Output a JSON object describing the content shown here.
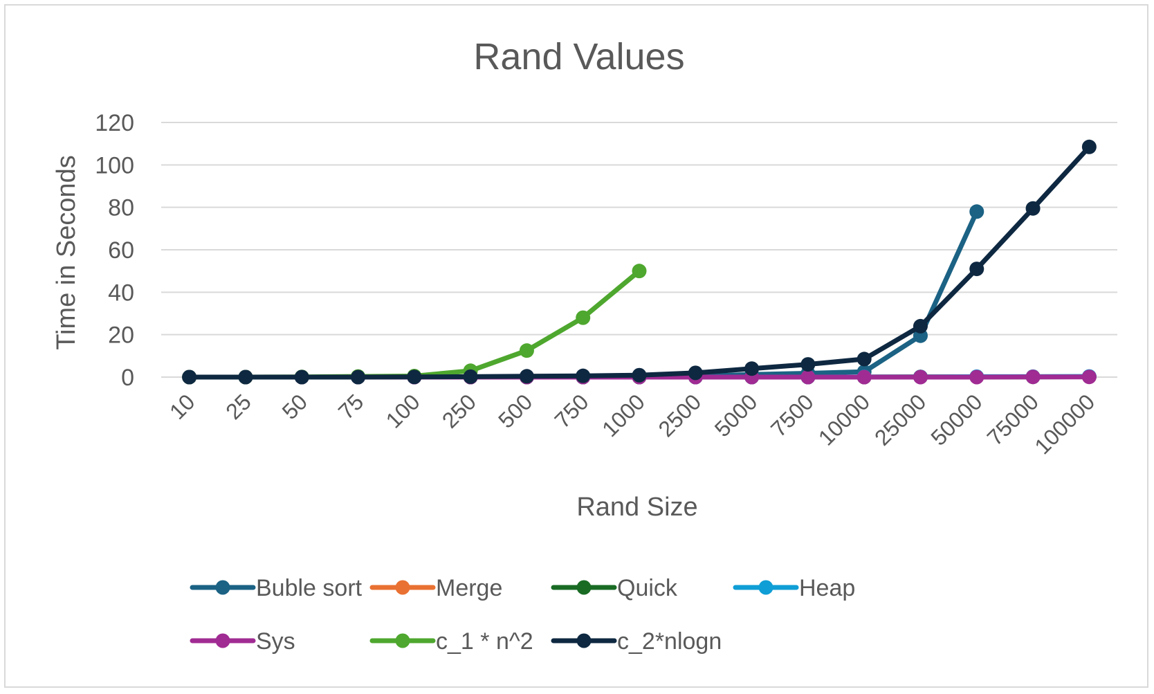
{
  "chart_data": {
    "type": "line",
    "title": "Rand Values",
    "xlabel": "Rand Size",
    "ylabel": "Time in Seconds",
    "categories": [
      "10",
      "25",
      "50",
      "75",
      "100",
      "250",
      "500",
      "750",
      "1000",
      "2500",
      "5000",
      "7500",
      "10000",
      "25000",
      "50000",
      "75000",
      "100000"
    ],
    "ylim": [
      0,
      120
    ],
    "yticks": [
      "0",
      "20",
      "40",
      "60",
      "80",
      "100",
      "120"
    ],
    "grid": "horizontal",
    "legend_position": "bottom",
    "series": [
      {
        "name": "Buble sort",
        "color": "#1b6284",
        "values": [
          0,
          0,
          0,
          0,
          0,
          0,
          0,
          0,
          0.1,
          0.4,
          1.2,
          1.8,
          2.5,
          19.5,
          78,
          null,
          null
        ]
      },
      {
        "name": "Merge",
        "color": "#e97132",
        "values": [
          0,
          0,
          0,
          0,
          0,
          0,
          0,
          0,
          0,
          0,
          0,
          0,
          0,
          0.1,
          0.1,
          0.2,
          0.2
        ]
      },
      {
        "name": "Quick",
        "color": "#196b24",
        "values": [
          0,
          0,
          0,
          0,
          0,
          0,
          0,
          0,
          0,
          0,
          0,
          0,
          0,
          0.1,
          0.1,
          0.1,
          0.2
        ]
      },
      {
        "name": "Heap",
        "color": "#0f9ed5",
        "values": [
          0,
          0,
          0,
          0,
          0,
          0,
          0,
          0,
          0,
          0,
          0,
          0,
          0.1,
          0.1,
          0.2,
          0.2,
          0.3
        ]
      },
      {
        "name": "Sys",
        "color": "#a02b93",
        "values": [
          0,
          0,
          0,
          0,
          0,
          0,
          0,
          0,
          0,
          0,
          0,
          0,
          0,
          0,
          0,
          0.1,
          0.1
        ]
      },
      {
        "name": "c_1 * n^2",
        "color": "#4ea72e",
        "values": [
          0,
          0,
          0.1,
          0.3,
          0.5,
          3,
          12.5,
          28,
          50,
          null,
          null,
          null,
          null,
          null,
          null,
          null,
          null
        ]
      },
      {
        "name": "c_2*nlogn",
        "color": "#0e2841",
        "values": [
          0,
          0,
          0,
          0,
          0.1,
          0.2,
          0.4,
          0.6,
          0.9,
          2,
          4,
          6,
          8.5,
          24,
          51,
          79.5,
          108.5
        ]
      }
    ]
  }
}
